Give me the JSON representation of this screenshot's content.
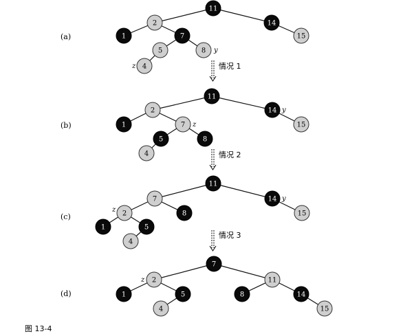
{
  "caption": "图 13-4",
  "cases": [
    {
      "label": "情况 1"
    },
    {
      "label": "情况 2"
    },
    {
      "label": "情况 3"
    }
  ],
  "panels": [
    {
      "label": "(a)",
      "nodes": [
        {
          "id": "a11",
          "key": "11",
          "color": "black"
        },
        {
          "id": "a2",
          "key": "2",
          "color": "red"
        },
        {
          "id": "a14",
          "key": "14",
          "color": "black"
        },
        {
          "id": "a1",
          "key": "1",
          "color": "black"
        },
        {
          "id": "a7",
          "key": "7",
          "color": "black"
        },
        {
          "id": "a15",
          "key": "15",
          "color": "red"
        },
        {
          "id": "a5",
          "key": "5",
          "color": "red"
        },
        {
          "id": "a8",
          "key": "8",
          "color": "red",
          "tag": "y"
        },
        {
          "id": "a4",
          "key": "4",
          "color": "red",
          "tag": "z"
        }
      ]
    },
    {
      "label": "(b)",
      "nodes": [
        {
          "id": "b11",
          "key": "11",
          "color": "black"
        },
        {
          "id": "b2",
          "key": "2",
          "color": "red"
        },
        {
          "id": "b14",
          "key": "14",
          "color": "black",
          "tag": "y"
        },
        {
          "id": "b1",
          "key": "1",
          "color": "black"
        },
        {
          "id": "b7",
          "key": "7",
          "color": "red",
          "tag": "z"
        },
        {
          "id": "b15",
          "key": "15",
          "color": "red"
        },
        {
          "id": "b5",
          "key": "5",
          "color": "black"
        },
        {
          "id": "b8",
          "key": "8",
          "color": "black"
        },
        {
          "id": "b4",
          "key": "4",
          "color": "red"
        }
      ]
    },
    {
      "label": "(c)",
      "nodes": [
        {
          "id": "c11",
          "key": "11",
          "color": "black"
        },
        {
          "id": "c7",
          "key": "7",
          "color": "red"
        },
        {
          "id": "c14",
          "key": "14",
          "color": "black",
          "tag": "y"
        },
        {
          "id": "c2",
          "key": "2",
          "color": "red",
          "tag": "z"
        },
        {
          "id": "c8",
          "key": "8",
          "color": "black"
        },
        {
          "id": "c15",
          "key": "15",
          "color": "red"
        },
        {
          "id": "c1",
          "key": "1",
          "color": "black"
        },
        {
          "id": "c5",
          "key": "5",
          "color": "black"
        },
        {
          "id": "c4",
          "key": "4",
          "color": "red"
        }
      ]
    },
    {
      "label": "(d)",
      "nodes": [
        {
          "id": "d7",
          "key": "7",
          "color": "black"
        },
        {
          "id": "d2",
          "key": "2",
          "color": "red",
          "tag": "z"
        },
        {
          "id": "d11",
          "key": "11",
          "color": "red"
        },
        {
          "id": "d1",
          "key": "1",
          "color": "black"
        },
        {
          "id": "d5",
          "key": "5",
          "color": "black"
        },
        {
          "id": "d8",
          "key": "8",
          "color": "black"
        },
        {
          "id": "d14",
          "key": "14",
          "color": "black"
        },
        {
          "id": "d4",
          "key": "4",
          "color": "red"
        },
        {
          "id": "d15",
          "key": "15",
          "color": "red"
        }
      ]
    }
  ]
}
